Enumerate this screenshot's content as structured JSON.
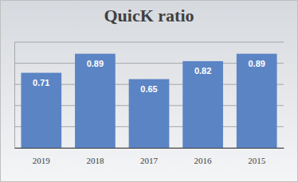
{
  "chart_data": {
    "type": "bar",
    "title": "QuicK ratio",
    "categories": [
      "2019",
      "2018",
      "2017",
      "2016",
      "2015"
    ],
    "values": [
      0.71,
      0.89,
      0.65,
      0.82,
      0.89
    ],
    "color": "#5b84c4",
    "ylim": [
      0,
      1
    ],
    "yticks": [
      0,
      0.2,
      0.4,
      0.6,
      0.8,
      1
    ],
    "grid": true,
    "data_labels": true,
    "tick_labels": "x"
  }
}
